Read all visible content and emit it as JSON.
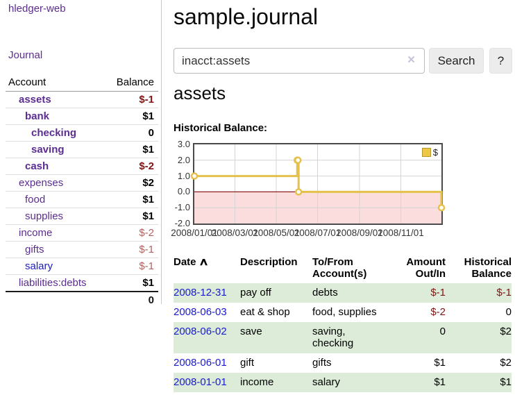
{
  "app": {
    "title": "hledger-web"
  },
  "colors": {
    "link_purple": "#5c2d91",
    "link_blue": "#1a1acd",
    "negative_strong": "#801515",
    "negative_muted": "#b26060",
    "row_stripe_green": "#dcecd8",
    "chart_line_gold": "#e5c14c",
    "chart_negative_fill": "#fbdddd",
    "chart_zero_line": "#8b1f1f"
  },
  "sidebar": {
    "journal_link": "Journal",
    "account_header": "Account",
    "balance_header": "Balance",
    "accounts": [
      {
        "name": "assets",
        "balance": "$-1"
      },
      {
        "name": "bank",
        "balance": "$1"
      },
      {
        "name": "checking",
        "balance": "0"
      },
      {
        "name": "saving",
        "balance": "$1"
      },
      {
        "name": "cash",
        "balance": "$-2"
      },
      {
        "name": "expenses",
        "balance": "$2"
      },
      {
        "name": "food",
        "balance": "$1"
      },
      {
        "name": "supplies",
        "balance": "$1"
      },
      {
        "name": "income",
        "balance": "$-2"
      },
      {
        "name": "gifts",
        "balance": "$-1"
      },
      {
        "name": "salary",
        "balance": "$-1"
      },
      {
        "name": "liabilities:debts",
        "balance": "$1"
      }
    ],
    "total": "0"
  },
  "main": {
    "title": "sample.journal",
    "search": {
      "value": "inacct:assets",
      "clear_icon": "×",
      "button_label": "Search",
      "help_label": "?"
    },
    "account_heading": "assets",
    "chart_title": "Historical Balance:"
  },
  "chart_data": {
    "type": "line",
    "step": true,
    "title": "Historical Balance",
    "series": [
      {
        "name": "$",
        "points": [
          [
            "2008/01/01",
            1
          ],
          [
            "2008/06/01",
            2
          ],
          [
            "2008/06/02",
            2
          ],
          [
            "2008/06/03",
            0
          ],
          [
            "2008/12/31",
            -1
          ]
        ]
      }
    ],
    "xlim": [
      "2008/01/01",
      "2008/12/31"
    ],
    "ylim": [
      -2,
      3
    ],
    "yticks": [
      3.0,
      2.0,
      1.0,
      0.0,
      -1.0,
      -2.0
    ],
    "xticks": [
      "2008/01/01",
      "2008/03/01",
      "2008/05/01",
      "2008/07/01",
      "2008/09/01",
      "2008/11/01"
    ],
    "legend": {
      "label": "$",
      "position": "top-right"
    },
    "grid": true
  },
  "journal_table": {
    "headers": {
      "date": "Date",
      "sort_icon": "∧",
      "description": "Description",
      "accounts": "To/From Account(s)",
      "amount": "Amount Out/In",
      "balance": "Historical Balance"
    },
    "rows": [
      {
        "date": "2008-12-31",
        "description": "pay off",
        "accounts": "debts",
        "amount": "$-1",
        "balance": "$-1"
      },
      {
        "date": "2008-06-03",
        "description": "eat & shop",
        "accounts": "food, supplies",
        "amount": "$-2",
        "balance": "0"
      },
      {
        "date": "2008-06-02",
        "description": "save",
        "accounts": "saving, checking",
        "amount": "0",
        "balance": "$2"
      },
      {
        "date": "2008-06-01",
        "description": "gift",
        "accounts": "gifts",
        "amount": "$1",
        "balance": "$2"
      },
      {
        "date": "2008-01-01",
        "description": "income",
        "accounts": "salary",
        "amount": "$1",
        "balance": "$1"
      }
    ]
  }
}
